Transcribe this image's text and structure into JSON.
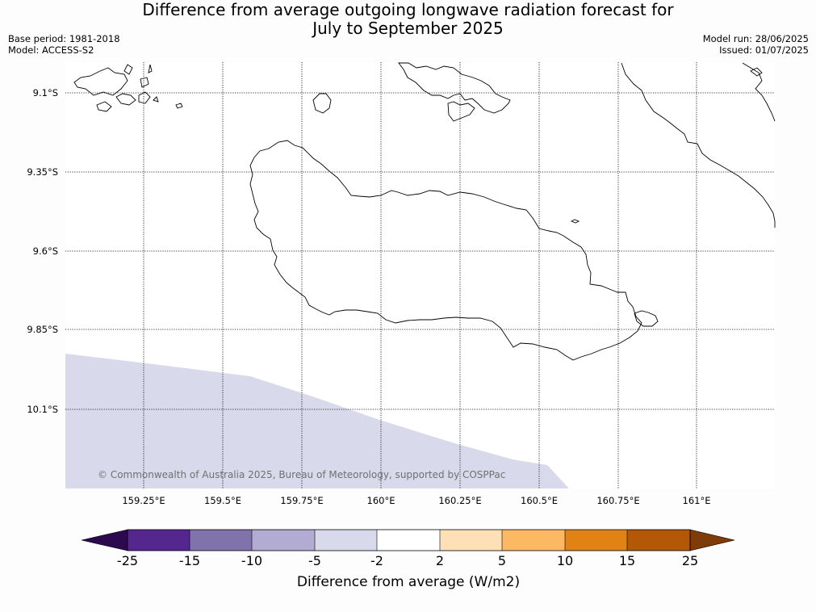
{
  "title_line1": "Difference from average outgoing longwave radiation forecast for",
  "title_line2": "July to September 2025",
  "base_period": "Base period: 1981-2018",
  "model": "Model: ACCESS-S2",
  "model_run": "Model run: 28/06/2025",
  "issued": "Issued: 01/07/2025",
  "copyright": "© Commonwealth of Australia 2025, Bureau of Meteorology, supported by COSPPac",
  "lat_labels": [
    "9.1°S",
    "9.35°S",
    "9.6°S",
    "9.85°S",
    "10.1°S"
  ],
  "lon_labels": [
    "159.25°E",
    "159.5°E",
    "159.75°E",
    "160°E",
    "160.25°E",
    "160.5°E",
    "160.75°E",
    "161°E"
  ],
  "colorbar": {
    "label": "Difference from average (W/m2)",
    "ticks": [
      "-25",
      "-15",
      "-10",
      "-5",
      "-2",
      "2",
      "5",
      "10",
      "15",
      "25"
    ],
    "colors": [
      "#2d0a4e",
      "#54278f",
      "#8073ac",
      "#b2abd2",
      "#d8daeb",
      "#ffffff",
      "#fee0b6",
      "#fdb863",
      "#e08214",
      "#b35806",
      "#7f3b08"
    ]
  },
  "shaded_region_color": "#d8daeb"
}
